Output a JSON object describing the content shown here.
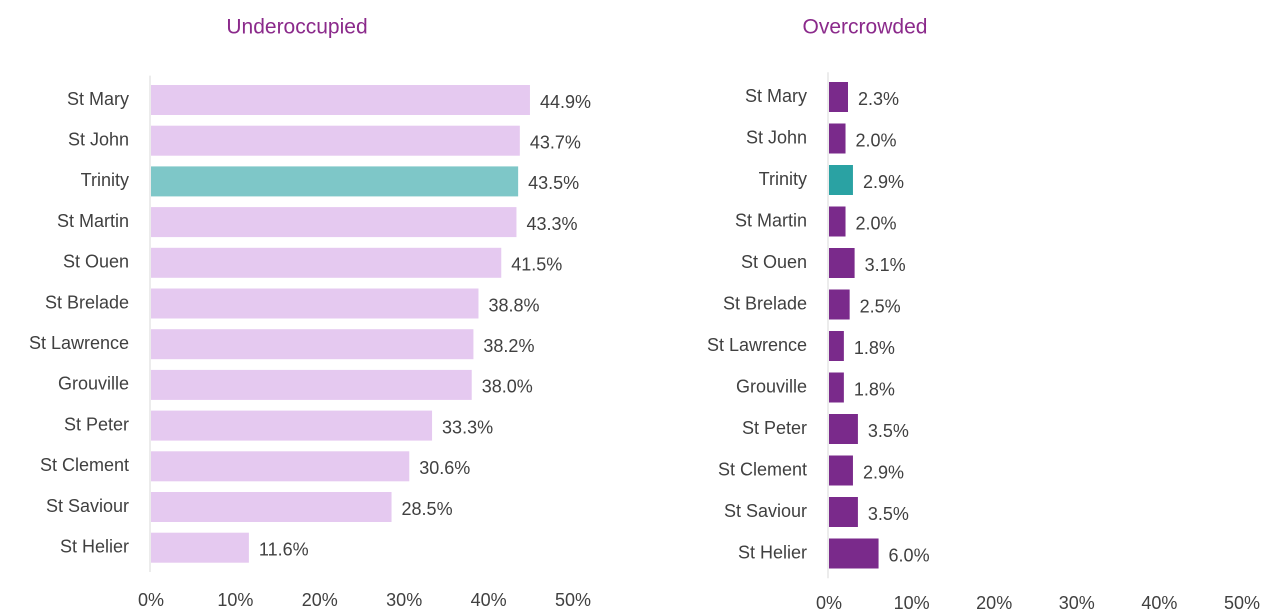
{
  "chart_data": [
    {
      "type": "bar",
      "orientation": "horizontal",
      "title": "Underoccupied",
      "categories": [
        "St Mary",
        "St John",
        "Trinity",
        "St Martin",
        "St Ouen",
        "St Brelade",
        "St Lawrence",
        "Grouville",
        "St Peter",
        "St Clement",
        "St Saviour",
        "St Helier"
      ],
      "values": [
        44.9,
        43.7,
        43.5,
        43.3,
        41.5,
        38.8,
        38.2,
        38.0,
        33.3,
        30.6,
        28.5,
        11.6
      ],
      "value_labels": [
        "44.9%",
        "43.7%",
        "43.5%",
        "43.3%",
        "41.5%",
        "38.8%",
        "38.2%",
        "38.0%",
        "33.3%",
        "30.6%",
        "28.5%",
        "11.6%"
      ],
      "colors": [
        "#e5c9f0",
        "#e5c9f0",
        "#7ec7c8",
        "#e5c9f0",
        "#e5c9f0",
        "#e5c9f0",
        "#e5c9f0",
        "#e5c9f0",
        "#e5c9f0",
        "#e5c9f0",
        "#e5c9f0",
        "#e5c9f0"
      ],
      "xlim": [
        0,
        50
      ],
      "xticks": [
        {
          "value": 0,
          "label": "0%"
        },
        {
          "value": 10,
          "label": "10%"
        },
        {
          "value": 20,
          "label": "20%"
        },
        {
          "value": 30,
          "label": "30%"
        },
        {
          "value": 40,
          "label": "40%"
        },
        {
          "value": 50,
          "label": "50%"
        }
      ],
      "grid": false
    },
    {
      "type": "bar",
      "orientation": "horizontal",
      "title": "Overcrowded",
      "categories": [
        "St Mary",
        "St John",
        "Trinity",
        "St Martin",
        "St Ouen",
        "St Brelade",
        "St Lawrence",
        "Grouville",
        "St Peter",
        "St Clement",
        "St Saviour",
        "St Helier"
      ],
      "values": [
        2.3,
        2.0,
        2.9,
        2.0,
        3.1,
        2.5,
        1.8,
        1.8,
        3.5,
        2.9,
        3.5,
        6.0
      ],
      "value_labels": [
        "2.3%",
        "2.0%",
        "2.9%",
        "2.0%",
        "3.1%",
        "2.5%",
        "1.8%",
        "1.8%",
        "3.5%",
        "2.9%",
        "3.5%",
        "6.0%"
      ],
      "colors": [
        "#7a2a8b",
        "#7a2a8b",
        "#2aa2a3",
        "#7a2a8b",
        "#7a2a8b",
        "#7a2a8b",
        "#7a2a8b",
        "#7a2a8b",
        "#7a2a8b",
        "#7a2a8b",
        "#7a2a8b",
        "#7a2a8b"
      ],
      "xlim": [
        0,
        50
      ],
      "xticks": [
        {
          "value": 0,
          "label": "0%"
        },
        {
          "value": 10,
          "label": "10%"
        },
        {
          "value": 20,
          "label": "20%"
        },
        {
          "value": 30,
          "label": "30%"
        },
        {
          "value": 40,
          "label": "40%"
        },
        {
          "value": 50,
          "label": "50%"
        }
      ],
      "grid": false
    }
  ]
}
